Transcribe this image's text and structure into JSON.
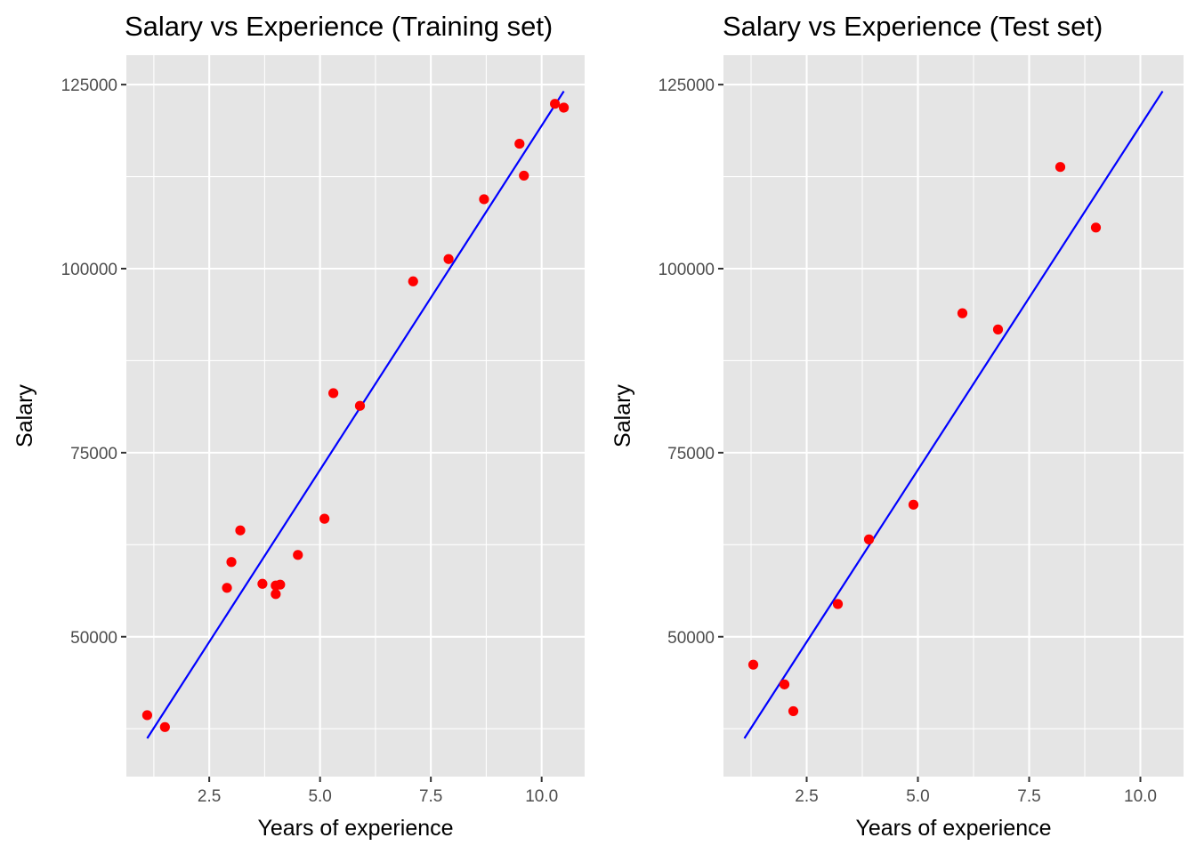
{
  "chart_data": [
    {
      "type": "scatter",
      "title": "Salary vs Experience (Training set)",
      "xlabel": "Years of experience",
      "ylabel": "Salary",
      "xlim": [
        0.63,
        10.97
      ],
      "ylim": [
        31000,
        129000
      ],
      "xticks": [
        2.5,
        5.0,
        7.5,
        10.0
      ],
      "xtick_labels": [
        "2.5",
        "5.0",
        "7.5",
        "10.0"
      ],
      "yticks": [
        50000,
        75000,
        100000,
        125000
      ],
      "ytick_labels": [
        "50000",
        "75000",
        "100000",
        "125000"
      ],
      "grid": true,
      "legend": "none",
      "point_color": "#ff0000",
      "line_color": "#0000ff",
      "points": [
        {
          "x": 1.1,
          "y": 39343
        },
        {
          "x": 1.5,
          "y": 37731
        },
        {
          "x": 2.9,
          "y": 56642
        },
        {
          "x": 3.0,
          "y": 60150
        },
        {
          "x": 3.2,
          "y": 64445
        },
        {
          "x": 3.7,
          "y": 57189
        },
        {
          "x": 4.0,
          "y": 55794
        },
        {
          "x": 4.0,
          "y": 56957
        },
        {
          "x": 4.1,
          "y": 57081
        },
        {
          "x": 4.5,
          "y": 61111
        },
        {
          "x": 5.1,
          "y": 66029
        },
        {
          "x": 5.3,
          "y": 83088
        },
        {
          "x": 5.9,
          "y": 81363
        },
        {
          "x": 7.1,
          "y": 98273
        },
        {
          "x": 7.9,
          "y": 101302
        },
        {
          "x": 8.7,
          "y": 109431
        },
        {
          "x": 9.5,
          "y": 116969
        },
        {
          "x": 9.6,
          "y": 112635
        },
        {
          "x": 10.3,
          "y": 122391
        },
        {
          "x": 10.5,
          "y": 121872
        }
      ],
      "regression_line": [
        {
          "x": 1.1,
          "y": 36200
        },
        {
          "x": 10.5,
          "y": 124100
        }
      ]
    },
    {
      "type": "scatter",
      "title": "Salary vs Experience (Test set)",
      "xlabel": "Years of experience",
      "ylabel": "Salary",
      "xlim": [
        0.63,
        10.97
      ],
      "ylim": [
        31000,
        129000
      ],
      "xticks": [
        2.5,
        5.0,
        7.5,
        10.0
      ],
      "xtick_labels": [
        "2.5",
        "5.0",
        "7.5",
        "10.0"
      ],
      "yticks": [
        50000,
        75000,
        100000,
        125000
      ],
      "ytick_labels": [
        "50000",
        "75000",
        "100000",
        "125000"
      ],
      "grid": true,
      "legend": "none",
      "point_color": "#ff0000",
      "line_color": "#0000ff",
      "points": [
        {
          "x": 1.3,
          "y": 46205
        },
        {
          "x": 2.0,
          "y": 43525
        },
        {
          "x": 2.2,
          "y": 39891
        },
        {
          "x": 3.2,
          "y": 54445
        },
        {
          "x": 3.9,
          "y": 63218
        },
        {
          "x": 4.9,
          "y": 67938
        },
        {
          "x": 6.0,
          "y": 93940
        },
        {
          "x": 6.8,
          "y": 91738
        },
        {
          "x": 8.2,
          "y": 113812
        },
        {
          "x": 9.0,
          "y": 105582
        }
      ],
      "regression_line": [
        {
          "x": 1.1,
          "y": 36200
        },
        {
          "x": 10.5,
          "y": 124100
        }
      ]
    }
  ]
}
